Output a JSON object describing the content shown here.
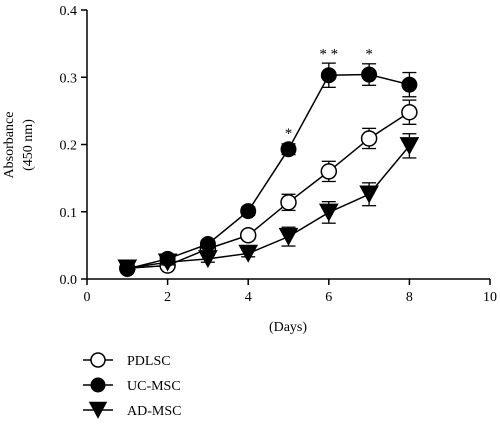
{
  "chart_data": {
    "type": "line",
    "title": "",
    "xlabel": "(Days)",
    "ylabel": "Absorbance",
    "ylabel_unit": "(450 nm)",
    "xlim": [
      0,
      10
    ],
    "ylim": [
      0.0,
      0.4
    ],
    "x_ticks": [
      "0",
      "2",
      "4",
      "6",
      "8",
      "10"
    ],
    "y_ticks": [
      "0.0",
      "0.1",
      "0.2",
      "0.3",
      "0.4"
    ],
    "x": [
      1,
      2,
      3,
      4,
      5,
      6,
      7,
      8
    ],
    "grid": false,
    "legend_position": "bottom-left",
    "series": [
      {
        "name": "PDLSC",
        "marker": "open-circle",
        "values": [
          0.016,
          0.02,
          0.045,
          0.065,
          0.114,
          0.16,
          0.209,
          0.248
        ],
        "errors": [
          0.004,
          0.004,
          0.005,
          0.006,
          0.012,
          0.015,
          0.015,
          0.018
        ]
      },
      {
        "name": "UC-MSC",
        "marker": "filled-circle",
        "values": [
          0.015,
          0.03,
          0.052,
          0.101,
          0.193,
          0.303,
          0.304,
          0.289
        ],
        "errors": [
          0.004,
          0.004,
          0.005,
          0.006,
          0.008,
          0.018,
          0.016,
          0.018
        ]
      },
      {
        "name": "AD-MSC",
        "marker": "filled-triangle-down",
        "values": [
          0.016,
          0.025,
          0.03,
          0.038,
          0.063,
          0.099,
          0.126,
          0.198
        ],
        "errors": [
          0.004,
          0.004,
          0.005,
          0.005,
          0.014,
          0.016,
          0.017,
          0.018
        ]
      }
    ],
    "annotations": [
      {
        "text": "*",
        "x": 5,
        "y": 0.21
      },
      {
        "text": "* *",
        "x": 6,
        "y": 0.328
      },
      {
        "text": "*",
        "x": 7,
        "y": 0.328
      }
    ]
  }
}
